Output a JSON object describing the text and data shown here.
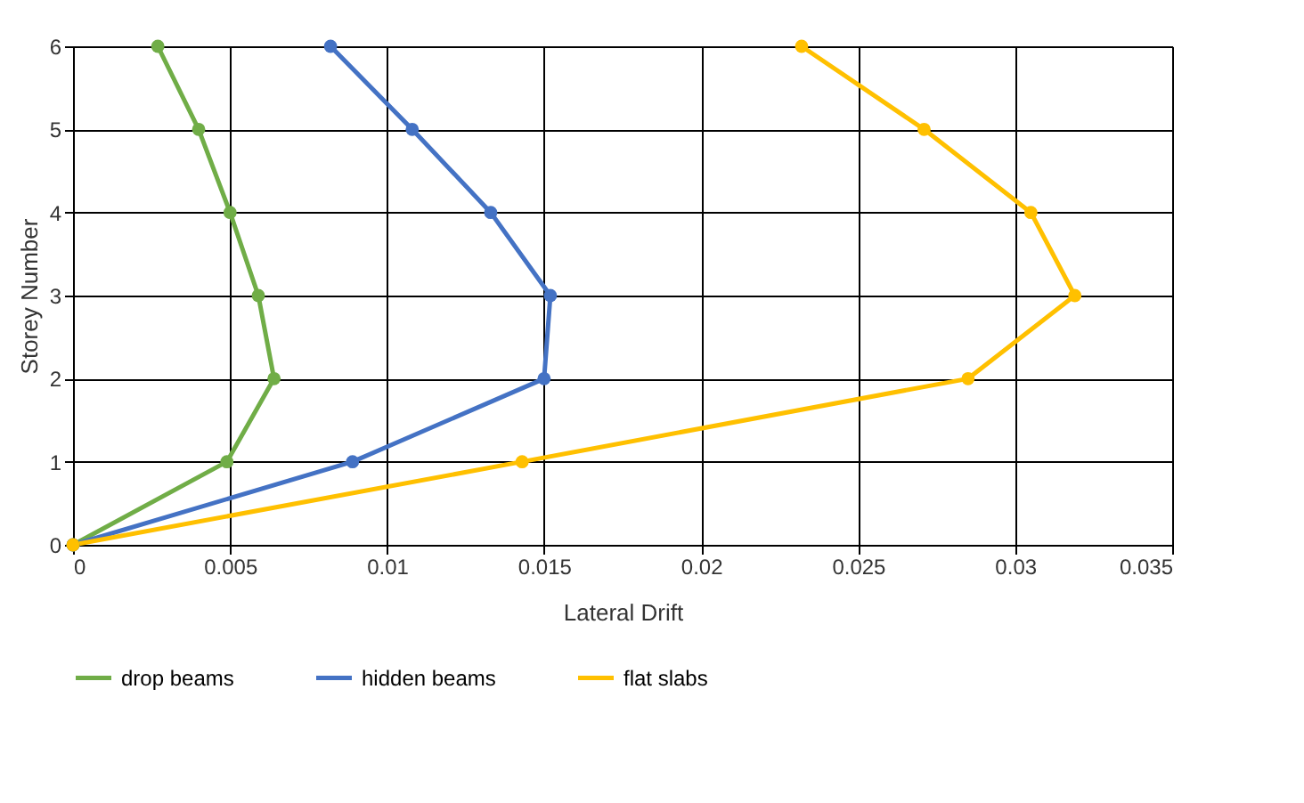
{
  "chart_data": {
    "type": "line",
    "xlabel": "Lateral Drift",
    "ylabel": "Storey Number",
    "xlim": [
      0,
      0.035
    ],
    "xticks": [
      0,
      0.005,
      0.01,
      0.015,
      0.02,
      0.025,
      0.03,
      0.035
    ],
    "ylim": [
      0,
      6
    ],
    "yticks": [
      0,
      1,
      2,
      3,
      4,
      5,
      6
    ],
    "grid": true,
    "legend": "bottom",
    "marker": "circle",
    "line_style": "solid",
    "series": [
      {
        "name": "drop beams",
        "color": "#70ad47",
        "x": [
          0,
          0.0049,
          0.0064,
          0.0059,
          0.005,
          0.004,
          0.0027
        ],
        "values": [
          0,
          1,
          2,
          3,
          4,
          5,
          6
        ]
      },
      {
        "name": "hidden beams",
        "color": "#4472c4",
        "x": [
          0,
          0.0089,
          0.015,
          0.0152,
          0.0133,
          0.0108,
          0.0082
        ],
        "values": [
          0,
          1,
          2,
          3,
          4,
          5,
          6
        ]
      },
      {
        "name": "flat slabs",
        "color": "#ffc000",
        "x": [
          0,
          0.0143,
          0.0285,
          0.0319,
          0.0305,
          0.0271,
          0.0232
        ],
        "values": [
          0,
          1,
          2,
          3,
          4,
          5,
          6
        ]
      }
    ]
  }
}
